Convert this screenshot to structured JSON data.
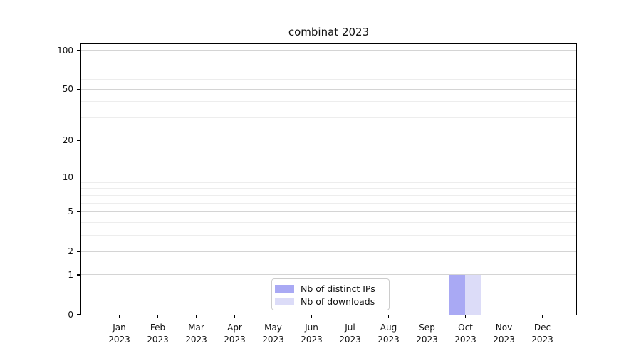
{
  "title": "combinat 2023",
  "colors": {
    "distinct_ips": "#a9a9f4",
    "downloads": "#dcdcf8",
    "grid_major": "#d4d4d4",
    "grid_minor": "#ededed",
    "axis": "#000000",
    "legend_border": "#cccccc",
    "text": "#111111"
  },
  "legend": {
    "entries": [
      {
        "label": "Nb of distinct IPs",
        "color": "#a9a9f4"
      },
      {
        "label": "Nb of downloads",
        "color": "#dcdcf8"
      }
    ]
  },
  "chart_data": {
    "type": "bar",
    "title": "combinat 2023",
    "categories": [
      "Jan",
      "Feb",
      "Mar",
      "Apr",
      "May",
      "Jun",
      "Jul",
      "Aug",
      "Sep",
      "Oct",
      "Nov",
      "Dec"
    ],
    "category_year": "2023",
    "series": [
      {
        "name": "Nb of distinct IPs",
        "color": "#a9a9f4",
        "values": [
          0,
          0,
          0,
          0,
          0,
          0,
          0,
          0,
          0,
          1,
          0,
          0
        ]
      },
      {
        "name": "Nb of downloads",
        "color": "#dcdcf8",
        "values": [
          0,
          0,
          0,
          0,
          0,
          0,
          0,
          0,
          0,
          1,
          0,
          0
        ]
      }
    ],
    "xlabel": "",
    "ylabel": "",
    "y_scale": "log1p",
    "ylim": [
      0,
      110
    ],
    "y_ticks": [
      0,
      1,
      2,
      5,
      10,
      20,
      50,
      100
    ],
    "y_minor_ticks": [
      3,
      4,
      6,
      7,
      8,
      9,
      30,
      40,
      60,
      70,
      80,
      90
    ],
    "grid": true,
    "legend_position": "lower center"
  }
}
